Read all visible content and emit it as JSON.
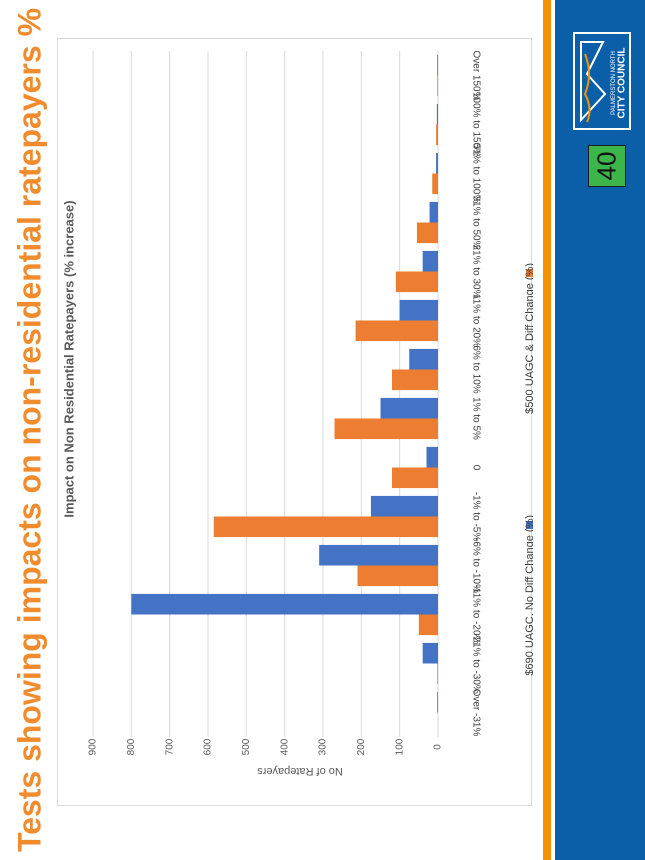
{
  "slide": {
    "title": "Tests showing impacts on non-residential ratepayers %",
    "page_number": "40",
    "logo": {
      "line1": "PALMERSTON NORTH",
      "line2": "CITY COUNCIL"
    },
    "colors": {
      "title": "#F08C2E",
      "band": "#0B5FA8",
      "stripe": "#F39200",
      "page_badge": "#3CB54A"
    }
  },
  "chart_data": {
    "type": "bar",
    "title": "Impact on Non Residential Ratepayers (% increase)",
    "xlabel": "",
    "ylabel": "No of Ratepayers",
    "ylim": [
      0,
      900
    ],
    "yticks": [
      0,
      100,
      200,
      300,
      400,
      500,
      600,
      700,
      800,
      900
    ],
    "grid": true,
    "legend_position": "bottom",
    "categories": [
      "Over 150%",
      "100% to 150%",
      "51% to 100%",
      "31% to 50%",
      "21% to 30%",
      "11% to 20%",
      "6% to 10%",
      "1% to 5%",
      "0",
      "-1% to -5%",
      "-6% to -10%",
      "-11% to -20%",
      "-21% to -30%",
      "Over -31%"
    ],
    "series": [
      {
        "name": "$690 UAGC, No Diff Change (%)",
        "color": "#4472C4",
        "values": [
          2,
          3,
          5,
          22,
          40,
          100,
          75,
          150,
          30,
          175,
          310,
          800,
          40,
          2
        ]
      },
      {
        "name": "$500 UAGC & Diff Change (%)",
        "color": "#ED7D31",
        "values": [
          2,
          5,
          15,
          55,
          110,
          215,
          120,
          270,
          120,
          585,
          210,
          50,
          2,
          0
        ]
      }
    ]
  }
}
